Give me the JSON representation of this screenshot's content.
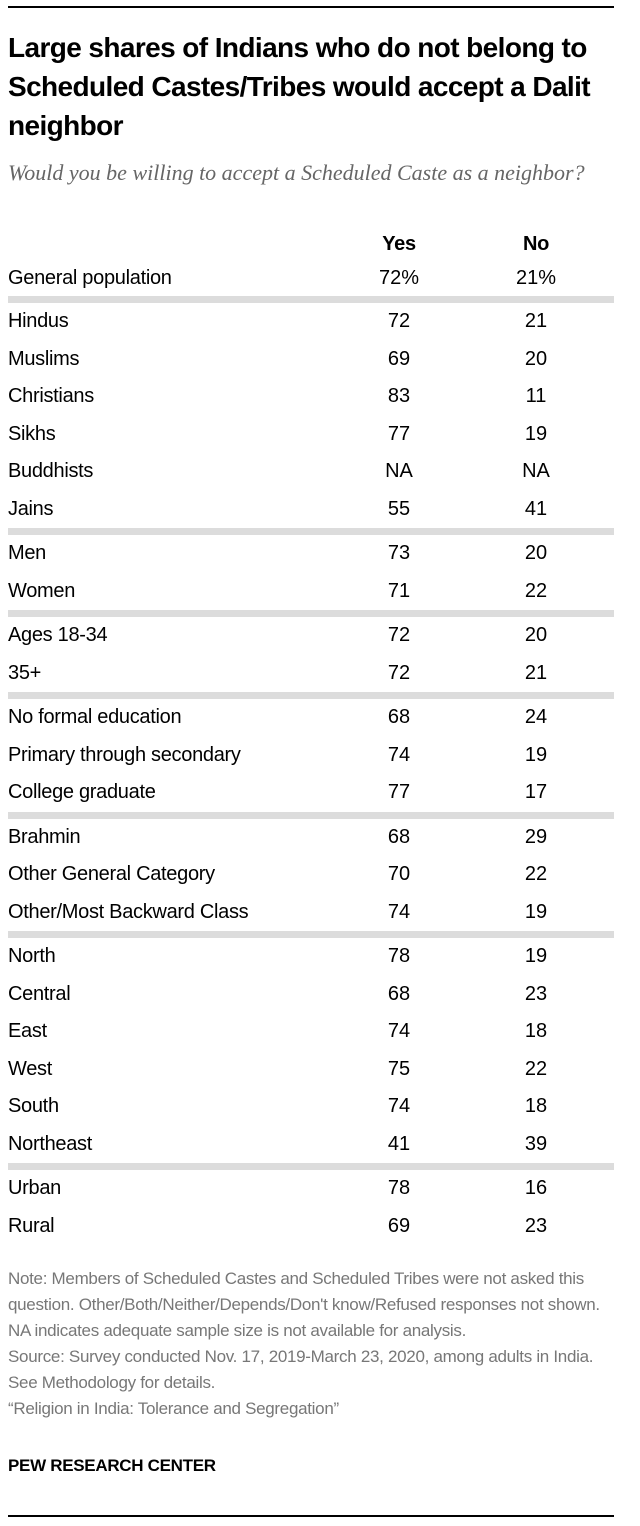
{
  "title": "Large shares of Indians who do not belong to Scheduled Castes/Tribes would accept a Dalit neighbor",
  "subtitle": "Would you be willing to accept a Scheduled Caste as a neighbor?",
  "chart_data": {
    "type": "table",
    "columns": [
      "Yes",
      "No"
    ],
    "total": {
      "label": "General population",
      "values": [
        "72%",
        "21%"
      ]
    },
    "groups": [
      [
        {
          "label": "Hindus",
          "values": [
            "72",
            "21"
          ]
        },
        {
          "label": "Muslims",
          "values": [
            "69",
            "20"
          ]
        },
        {
          "label": "Christians",
          "values": [
            "83",
            "11"
          ]
        },
        {
          "label": "Sikhs",
          "values": [
            "77",
            "19"
          ]
        },
        {
          "label": "Buddhists",
          "values": [
            "NA",
            "NA"
          ]
        },
        {
          "label": "Jains",
          "values": [
            "55",
            "41"
          ]
        }
      ],
      [
        {
          "label": "Men",
          "values": [
            "73",
            "20"
          ]
        },
        {
          "label": "Women",
          "values": [
            "71",
            "22"
          ]
        }
      ],
      [
        {
          "label": "Ages 18-34",
          "values": [
            "72",
            "20"
          ]
        },
        {
          "label": "35+",
          "values": [
            "72",
            "21"
          ]
        }
      ],
      [
        {
          "label": "No formal education",
          "values": [
            "68",
            "24"
          ]
        },
        {
          "label": "Primary through secondary",
          "values": [
            "74",
            "19"
          ]
        },
        {
          "label": "College graduate",
          "values": [
            "77",
            "17"
          ]
        }
      ],
      [
        {
          "label": "Brahmin",
          "values": [
            "68",
            "29"
          ]
        },
        {
          "label": "Other General Category",
          "values": [
            "70",
            "22"
          ]
        },
        {
          "label": "Other/Most Backward Class",
          "values": [
            "74",
            "19"
          ]
        }
      ],
      [
        {
          "label": "North",
          "values": [
            "78",
            "19"
          ]
        },
        {
          "label": "Central",
          "values": [
            "68",
            "23"
          ]
        },
        {
          "label": "East",
          "values": [
            "74",
            "18"
          ]
        },
        {
          "label": "West",
          "values": [
            "75",
            "22"
          ]
        },
        {
          "label": "South",
          "values": [
            "74",
            "18"
          ]
        },
        {
          "label": "Northeast",
          "values": [
            "41",
            "39"
          ]
        }
      ],
      [
        {
          "label": "Urban",
          "values": [
            "78",
            "16"
          ]
        },
        {
          "label": "Rural",
          "values": [
            "69",
            "23"
          ]
        }
      ]
    ]
  },
  "notes": {
    "note": "Note: Members of Scheduled Castes and Scheduled Tribes were not asked this question. Other/Both/Neither/Depends/Don't know/Refused responses not shown. NA indicates adequate sample size is not available for analysis.",
    "source": "Source: Survey conducted Nov. 17, 2019-March 23, 2020, among adults in India. See Methodology for details.",
    "report": "“Religion in India: Tolerance and Segregation”"
  },
  "brand": "PEW RESEARCH CENTER",
  "colors": {
    "separator": "#dcdcdc",
    "note_text": "#777777",
    "subtitle": "#666666"
  }
}
